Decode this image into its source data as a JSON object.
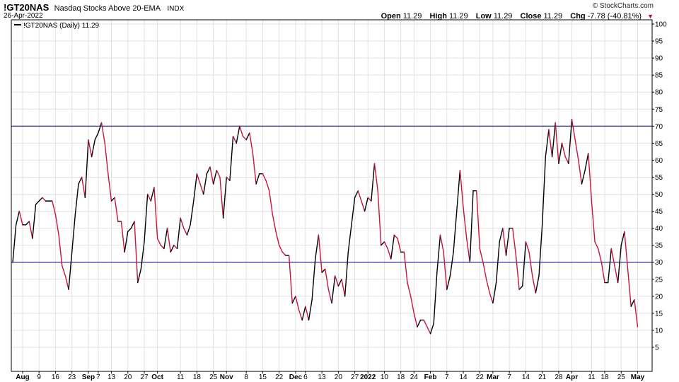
{
  "header": {
    "symbol": "!GT20NAS",
    "name": "Nasdaq Stocks Above 20-EMA",
    "exchange": "INDX",
    "date": "26-Apr-2022",
    "brand": "© StockCharts.com",
    "open_label": "Open",
    "open": "11.29",
    "high_label": "High",
    "high": "11.29",
    "low_label": "Low",
    "low": "11.29",
    "close_label": "Close",
    "close": "11.29",
    "chg_label": "Chg",
    "chg": "-7.78 (-40.81%)"
  },
  "chart_data": {
    "type": "line",
    "legend": "!GT20NAS (Daily) 11.29",
    "ylim": [
      0,
      100
    ],
    "yticks": [
      5,
      10,
      15,
      20,
      25,
      30,
      35,
      40,
      45,
      50,
      55,
      60,
      65,
      70,
      75,
      80,
      85,
      90,
      95,
      100
    ],
    "hlines": [
      70,
      30
    ],
    "colors": {
      "up": "#000000",
      "down": "#c8143c",
      "hline": "#000080",
      "grid": "#e2e2e2"
    },
    "xticks": [
      {
        "label": "Aug",
        "i": 3,
        "bold": true
      },
      {
        "label": "9",
        "i": 8
      },
      {
        "label": "16",
        "i": 13
      },
      {
        "label": "23",
        "i": 18
      },
      {
        "label": "Sep",
        "i": 23,
        "bold": true
      },
      {
        "label": "7",
        "i": 26
      },
      {
        "label": "13",
        "i": 30
      },
      {
        "label": "20",
        "i": 35
      },
      {
        "label": "27",
        "i": 40
      },
      {
        "label": "Oct",
        "i": 44,
        "bold": true
      },
      {
        "label": "11",
        "i": 51
      },
      {
        "label": "18",
        "i": 56
      },
      {
        "label": "25",
        "i": 61
      },
      {
        "label": "Nov",
        "i": 65,
        "bold": true
      },
      {
        "label": "8",
        "i": 71
      },
      {
        "label": "15",
        "i": 76
      },
      {
        "label": "22",
        "i": 81
      },
      {
        "label": "Dec",
        "i": 86,
        "bold": true
      },
      {
        "label": "6",
        "i": 89
      },
      {
        "label": "13",
        "i": 94
      },
      {
        "label": "20",
        "i": 99
      },
      {
        "label": "27",
        "i": 104
      },
      {
        "label": "2022",
        "i": 108,
        "bold": true
      },
      {
        "label": "10",
        "i": 113
      },
      {
        "label": "18",
        "i": 118
      },
      {
        "label": "24",
        "i": 122
      },
      {
        "label": "Feb",
        "i": 127,
        "bold": true
      },
      {
        "label": "7",
        "i": 132
      },
      {
        "label": "14",
        "i": 137
      },
      {
        "label": "22",
        "i": 142
      },
      {
        "label": "Mar",
        "i": 146,
        "bold": true
      },
      {
        "label": "7",
        "i": 151
      },
      {
        "label": "14",
        "i": 156
      },
      {
        "label": "21",
        "i": 161
      },
      {
        "label": "28",
        "i": 166
      },
      {
        "label": "Apr",
        "i": 170,
        "bold": true
      },
      {
        "label": "11",
        "i": 176
      },
      {
        "label": "18",
        "i": 180
      },
      {
        "label": "25",
        "i": 185
      },
      {
        "label": "May",
        "i": 190,
        "bold": true
      }
    ],
    "values": [
      30,
      41,
      45,
      41,
      41,
      42,
      37,
      47,
      48,
      49,
      48,
      48,
      48,
      44,
      38,
      29,
      26,
      22,
      33,
      44,
      53,
      55,
      49,
      66,
      61,
      66,
      68,
      71,
      65,
      56,
      48,
      49,
      42,
      42,
      33,
      39,
      40,
      42,
      24,
      28,
      36,
      50,
      48,
      52,
      37,
      35,
      34,
      40,
      33,
      35,
      34,
      43,
      40,
      38,
      41,
      48,
      56,
      53,
      50,
      56,
      58,
      53,
      57,
      55,
      43,
      55,
      54,
      67,
      65,
      70,
      67,
      66,
      68,
      62,
      53,
      56,
      56,
      54,
      51,
      44,
      39,
      35,
      33,
      32,
      32,
      18,
      20,
      16,
      13,
      17,
      13,
      19,
      31,
      38,
      27,
      28,
      22,
      18,
      26,
      23,
      25,
      20,
      33,
      41,
      49,
      51,
      48,
      45,
      49,
      48,
      59,
      51,
      35,
      36,
      34,
      31,
      38,
      37,
      33,
      33,
      24,
      20,
      15,
      11,
      13,
      13,
      11,
      9,
      12,
      27,
      38,
      33,
      22,
      26,
      33,
      45,
      57,
      46,
      37,
      30,
      51,
      51,
      34,
      30,
      25,
      21,
      18,
      24,
      36,
      40,
      32,
      40,
      40,
      32,
      22,
      23,
      36,
      33,
      26,
      21,
      26,
      41,
      61,
      69,
      61,
      71,
      59,
      65,
      61,
      59,
      72,
      66,
      60,
      53,
      57,
      62,
      48,
      36,
      34,
      30,
      24,
      24,
      34,
      29,
      24,
      35,
      39,
      28,
      17,
      19,
      11
    ]
  }
}
